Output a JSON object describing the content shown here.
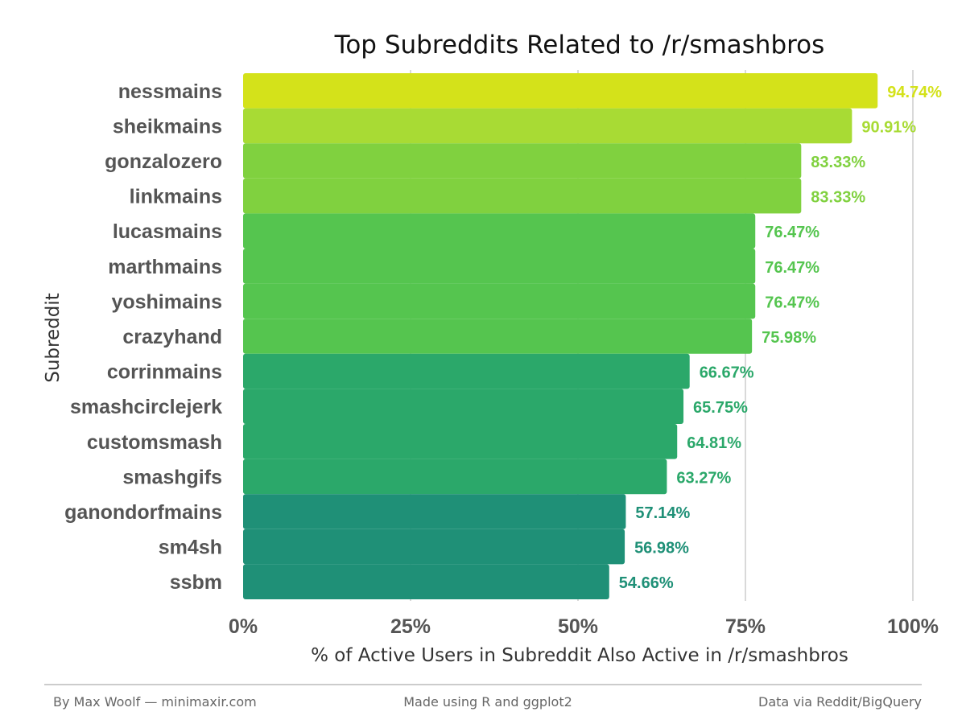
{
  "chart_data": {
    "type": "bar",
    "orientation": "horizontal",
    "title": "Top Subreddits Related to /r/smashbros",
    "xlabel": "% of Active Users in Subreddit Also Active in /r/smashbros",
    "ylabel": "Subreddit",
    "categories": [
      "nessmains",
      "sheikmains",
      "gonzalozero",
      "linkmains",
      "lucasmains",
      "marthmains",
      "yoshimains",
      "crazyhand",
      "corrinmains",
      "smashcirclejerk",
      "customsmash",
      "smashgifs",
      "ganondorfmains",
      "sm4sh",
      "ssbm"
    ],
    "values": [
      94.74,
      90.91,
      83.33,
      83.33,
      76.47,
      76.47,
      76.47,
      75.98,
      66.67,
      65.75,
      64.81,
      63.27,
      57.14,
      56.98,
      54.66
    ],
    "value_labels": [
      "94.74%",
      "90.91%",
      "83.33%",
      "83.33%",
      "76.47%",
      "76.47%",
      "76.47%",
      "75.98%",
      "66.67%",
      "65.75%",
      "64.81%",
      "63.27%",
      "57.14%",
      "56.98%",
      "54.66%"
    ],
    "colors": [
      "#d4e21a",
      "#a8db34",
      "#80d13f",
      "#80d13f",
      "#55c54f",
      "#55c54f",
      "#55c54f",
      "#55c54f",
      "#2ba86a",
      "#2ba86a",
      "#2ba86a",
      "#2ba86a",
      "#1f9077",
      "#1f9077",
      "#1f9077"
    ],
    "xlim": [
      0,
      100
    ],
    "x_ticks": [
      0,
      25,
      50,
      75,
      100
    ],
    "x_tick_labels": [
      "0%",
      "25%",
      "50%",
      "75%",
      "100%"
    ],
    "grid": "vertical major"
  },
  "footer": {
    "left": "By Max Woolf — minimaxir.com",
    "center": "Made using R and ggplot2",
    "right": "Data via Reddit/BigQuery"
  }
}
